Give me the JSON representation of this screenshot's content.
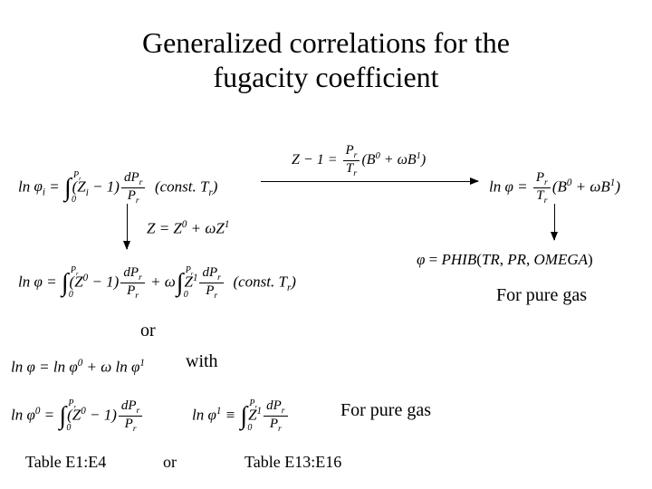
{
  "title_line1": "Generalized correlations for the",
  "title_line2": "fugacity coefficient",
  "eq_top_left": "ln <i>φ<sub>i</sub></i> = <span class=\"int\">∫<span class=\"ll\">0</span><span class=\"ul\">P<sub>r</sub></span></span>(Z<sub>i</sub> − 1)<span class=\"frac\"><span class=\"num\">dP<sub>r</sub></span><span class=\"den\">P<sub>r</sub></span></span>&nbsp;&nbsp;(const. T<sub>r</sub>)",
  "eq_top_center": "Z − 1 = <span class=\"frac\"><span class=\"num\">P<sub>r</sub></span><span class=\"den\">T<sub>r</sub></span></span>(B<sup>0</sup> + ωB<sup>1</sup>)",
  "eq_top_right": "ln <i>φ</i> = <span class=\"frac\"><span class=\"num\">P<sub>r</sub></span><span class=\"den\">T<sub>r</sub></span></span>(B<sup>0</sup> + ωB<sup>1</sup>)",
  "eq_z_split": "Z = Z<sup>0</sup> + ωZ<sup>1</sup>",
  "eq_mid_left": "ln <i>φ</i> = <span class=\"int\">∫<span class=\"ll\">0</span><span class=\"ul\">P<sub>r</sub></span></span>(Z<sup>0</sup> − 1)<span class=\"frac\"><span class=\"num\">dP<sub>r</sub></span><span class=\"den\">P<sub>r</sub></span></span> + ω<span class=\"int\">∫<span class=\"ll\">0</span><span class=\"ul\">P<sub>r</sub></span></span>Z<sup>1</sup><span class=\"frac\"><span class=\"num\">dP<sub>r</sub></span><span class=\"den\">P<sub>r</sub></span></span>&nbsp;&nbsp;(const. T<sub>r</sub>)",
  "eq_phib": "<span style=\"font-style:italic\">φ</span> = <span style=\"font-style:italic\">PHIB</span>(<span style=\"font-style:italic\">TR</span>, <span style=\"font-style:italic\">PR</span>, <span style=\"font-style:italic\">OMEGA</span>)",
  "label_for_pure_gas": "For pure gas",
  "label_or": "or",
  "label_with": "with",
  "eq_split_phi": "ln <i>φ</i> = ln <i>φ</i><sup>0</sup> + ω ln <i>φ</i><sup>1</sup>",
  "eq_phi0": "ln <i>φ</i><sup>0</sup> = <span class=\"int\">∫<span class=\"ll\">0</span><span class=\"ul\">P<sub>r</sub></span></span>(Z<sup>0</sup> − 1)<span class=\"frac\"><span class=\"num\">dP<sub>r</sub></span><span class=\"den\">P<sub>r</sub></span></span>",
  "eq_phi1": "ln <i>φ</i><sup>1</sup> ≡ <span class=\"int\">∫<span class=\"ll\">0</span><span class=\"ul\">P<sub>r</sub></span></span>Z<sup>1</sup><span class=\"frac\"><span class=\"num\">dP<sub>r</sub></span><span class=\"den\">P<sub>r</sub></span></span>",
  "label_table_left": "Table E1:E4",
  "label_table_right": "Table E13:E16",
  "colors": {
    "text": "#000000",
    "background": "#ffffff"
  }
}
